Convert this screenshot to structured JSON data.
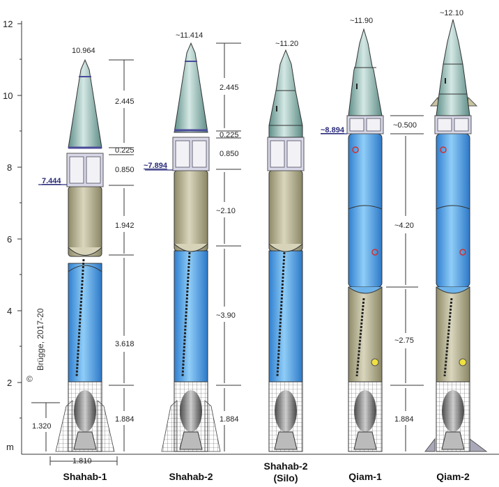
{
  "axis": {
    "unit": "m",
    "ticks": [
      "12",
      "10",
      "8",
      "6",
      "4",
      "2"
    ]
  },
  "copyright": "Brügge, 2017-20",
  "copyright_symbol": "©",
  "rockets": [
    {
      "name": "Shahab-1",
      "top": "10.964",
      "dims": [
        "2.445",
        "0.225",
        "0.850",
        "1.942",
        "3.618",
        "1.884"
      ],
      "marker": "7.444",
      "base_height": "1.320",
      "base_width": "1.810"
    },
    {
      "name": "Shahab-2",
      "top": "~11.414",
      "dims": [
        "2.445",
        "0.225",
        "0.850",
        "~2.10",
        "~3.90"
      ],
      "marker": "~7.894"
    },
    {
      "name_line1": "Shahab-2",
      "name_line2": "(Silo)",
      "top": "~11.20",
      "dims": [
        "1.884"
      ]
    },
    {
      "name": "Qiam-1",
      "top": "~11.90",
      "dims": [
        "~0.500",
        "~4.20",
        "~2.75",
        "1.884"
      ],
      "marker": "~8.894"
    },
    {
      "name": "Qiam-2",
      "top": "~12.10"
    }
  ],
  "colors": {
    "nose": "#8fb8b2",
    "blue_tank": "#6fb4ea",
    "olive_tank": "#bdb89a",
    "payload": "#d8d8e8",
    "marker_text": "#2a2a7a"
  }
}
